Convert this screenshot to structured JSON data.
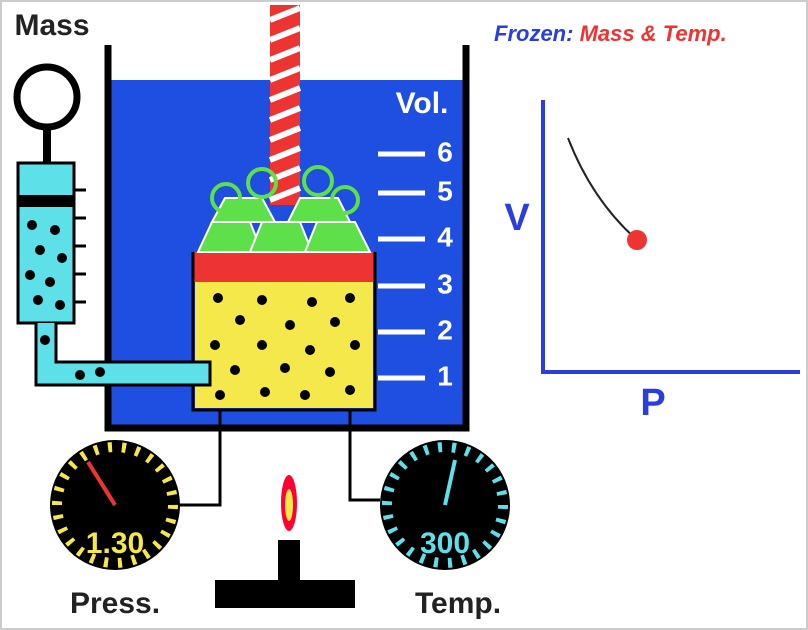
{
  "labels": {
    "mass": "Mass",
    "frozen": "Frozen:",
    "frozen_items": "Mass & Temp.",
    "volume": "Vol.",
    "pressure": "Press.",
    "temperature": "Temp."
  },
  "volume_scale": [
    6,
    5,
    4,
    3,
    2,
    1
  ],
  "graph": {
    "y_label": "V",
    "x_label": "P"
  },
  "gauges": {
    "pressure": "1.30",
    "temperature": "300"
  }
}
